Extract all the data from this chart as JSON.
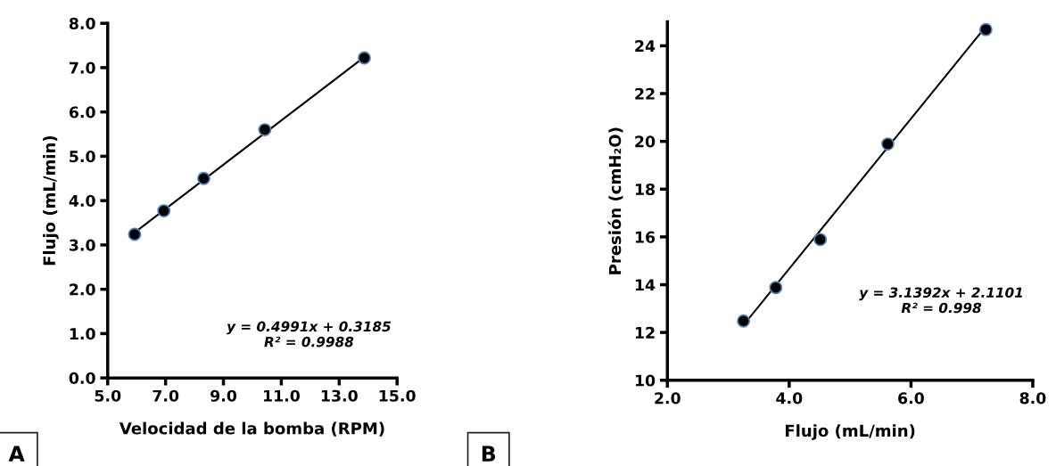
{
  "chart_data": [
    {
      "type": "scatter",
      "xlabel": "Velocidad de la bomba (RPM)",
      "ylabel": "Flujo (mL/min)",
      "xlim": [
        5,
        15
      ],
      "xticks": [
        {
          "value": 5,
          "label": "5.0"
        },
        {
          "value": 7,
          "label": "7.0"
        },
        {
          "value": 9,
          "label": "9.0"
        },
        {
          "value": 11,
          "label": "11.0"
        },
        {
          "value": 13,
          "label": "13.0"
        },
        {
          "value": 15,
          "label": "15.0"
        }
      ],
      "ylim": [
        0,
        8
      ],
      "yticks": [
        {
          "value": 0,
          "label": "0.0"
        },
        {
          "value": 1,
          "label": "1.0"
        },
        {
          "value": 2,
          "label": "2.0"
        },
        {
          "value": 3,
          "label": "3.0"
        },
        {
          "value": 4,
          "label": "4.0"
        },
        {
          "value": 5,
          "label": "5.0"
        },
        {
          "value": 6,
          "label": "6.0"
        },
        {
          "value": 7,
          "label": "7.0"
        },
        {
          "value": 8,
          "label": "8.0"
        }
      ],
      "grid": false,
      "legend": false,
      "marker": "circle",
      "series": [
        {
          "color": "#000000",
          "x": [
            5.93,
            6.94,
            8.32,
            10.43,
            13.87
          ],
          "values": [
            3.24,
            3.77,
            4.5,
            5.6,
            7.22
          ]
        },
        {
          "type": "line",
          "marker": "none",
          "color": "#000000",
          "x": [
            5.93,
            13.87
          ],
          "values": [
            3.28,
            7.24
          ]
        }
      ],
      "annotations": [
        "A",
        "y = 0.4991x + 0.3185",
        "R² = 0.9988"
      ]
    },
    {
      "type": "scatter",
      "xlabel": "Flujo (mL/min)",
      "ylabel": "Presión (cmH₂O)",
      "xlim": [
        2,
        8
      ],
      "xticks": [
        {
          "value": 2,
          "label": "2.0"
        },
        {
          "value": 4,
          "label": "4.0"
        },
        {
          "value": 6,
          "label": "6.0"
        },
        {
          "value": 8,
          "label": "8.0"
        }
      ],
      "ylim": [
        10,
        25
      ],
      "yticks": [
        10,
        12,
        14,
        16,
        18,
        20,
        22,
        24
      ],
      "grid": false,
      "legend": false,
      "marker": "circle",
      "series": [
        {
          "color": "#000000",
          "x": [
            3.25,
            3.78,
            4.51,
            5.62,
            7.23
          ],
          "values": [
            12.48,
            13.88,
            15.89,
            19.89,
            24.68
          ]
        },
        {
          "type": "line",
          "marker": "none",
          "color": "#000000",
          "x": [
            3.25,
            7.23
          ],
          "values": [
            12.31,
            24.81
          ]
        }
      ],
      "annotations": [
        "B",
        "y = 3.1392x + 2.1101",
        "R² = 0.998"
      ]
    }
  ]
}
